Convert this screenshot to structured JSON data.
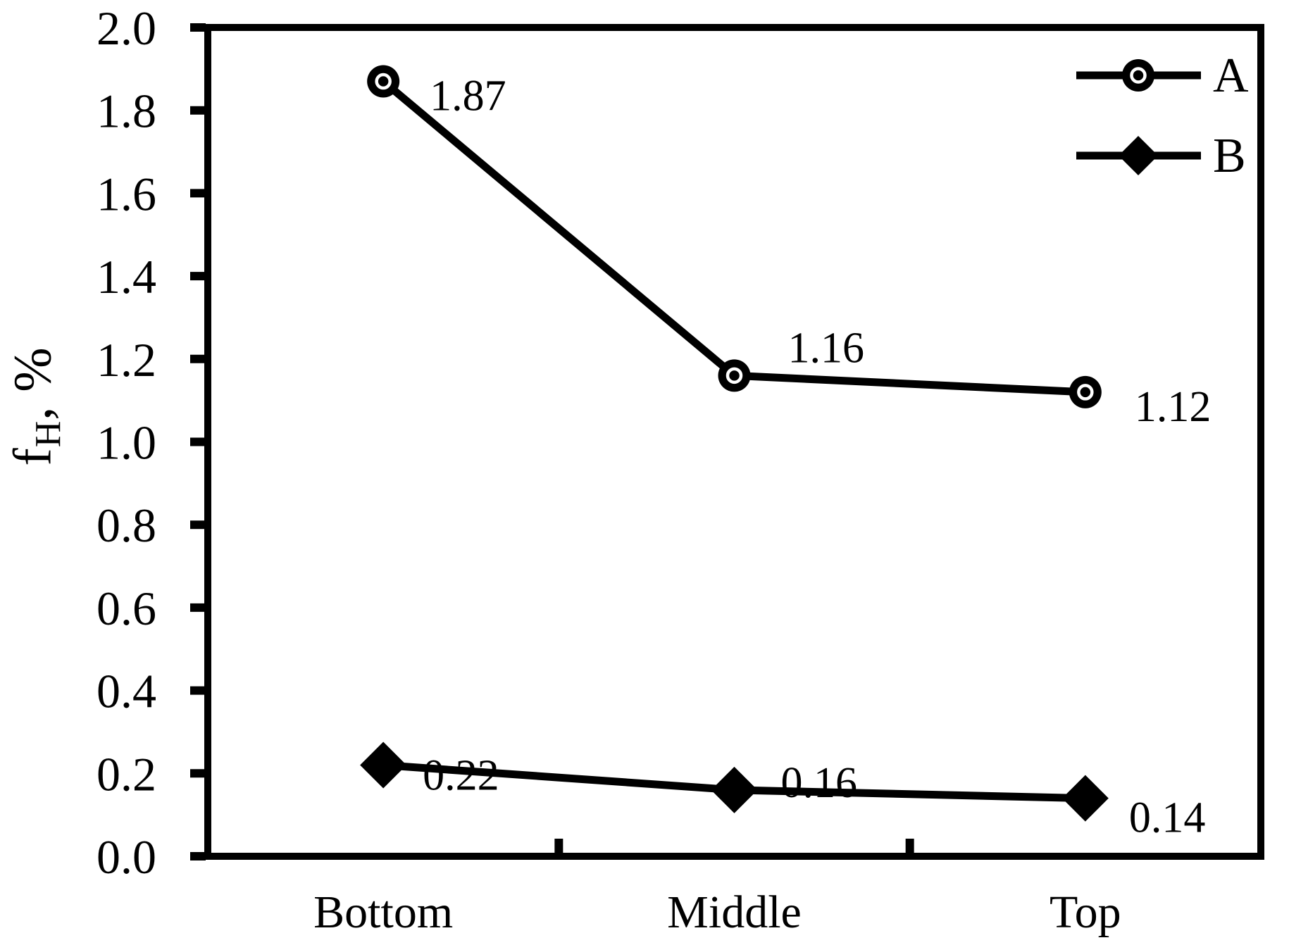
{
  "figure": {
    "background": "#ffffff",
    "foreground": "#000000"
  },
  "chart_data": {
    "type": "line",
    "title": "",
    "categories": [
      "Bottom",
      "Middle",
      "Top"
    ],
    "series": [
      {
        "name": "A",
        "marker": "circle",
        "values": [
          1.87,
          1.16,
          1.12
        ],
        "data_labels": [
          "1.87",
          "1.16",
          "1.12"
        ],
        "label_offsets": [
          [
            66,
            20
          ],
          [
            76,
            -40
          ],
          [
            70,
            20
          ]
        ]
      },
      {
        "name": "B",
        "marker": "diamond",
        "values": [
          0.22,
          0.16,
          0.14
        ],
        "data_labels": [
          "0.22",
          "0.16",
          "0.14"
        ],
        "label_offsets": [
          [
            56,
            14
          ],
          [
            66,
            -11
          ],
          [
            62,
            27
          ]
        ]
      }
    ],
    "xlabel": "",
    "ylabel": "fH, %",
    "ylabel_parts": {
      "base": "f",
      "sub": "H",
      "rest": ", %"
    },
    "ylim": [
      0.0,
      2.0
    ],
    "ytick_step": 0.2,
    "ytick_labels": [
      "2.0",
      "1.8",
      "1.6",
      "1.4",
      "1.2",
      "1.0",
      "0.8",
      "0.6",
      "0.4",
      "0.2",
      "0.0"
    ],
    "grid": false,
    "legend_position": "top-right",
    "line_color": "#000000",
    "marker_color": "#000000",
    "background": "#ffffff"
  },
  "legend": {
    "items": [
      {
        "label": "A",
        "marker": "circle"
      },
      {
        "label": "B",
        "marker": "diamond"
      }
    ]
  }
}
